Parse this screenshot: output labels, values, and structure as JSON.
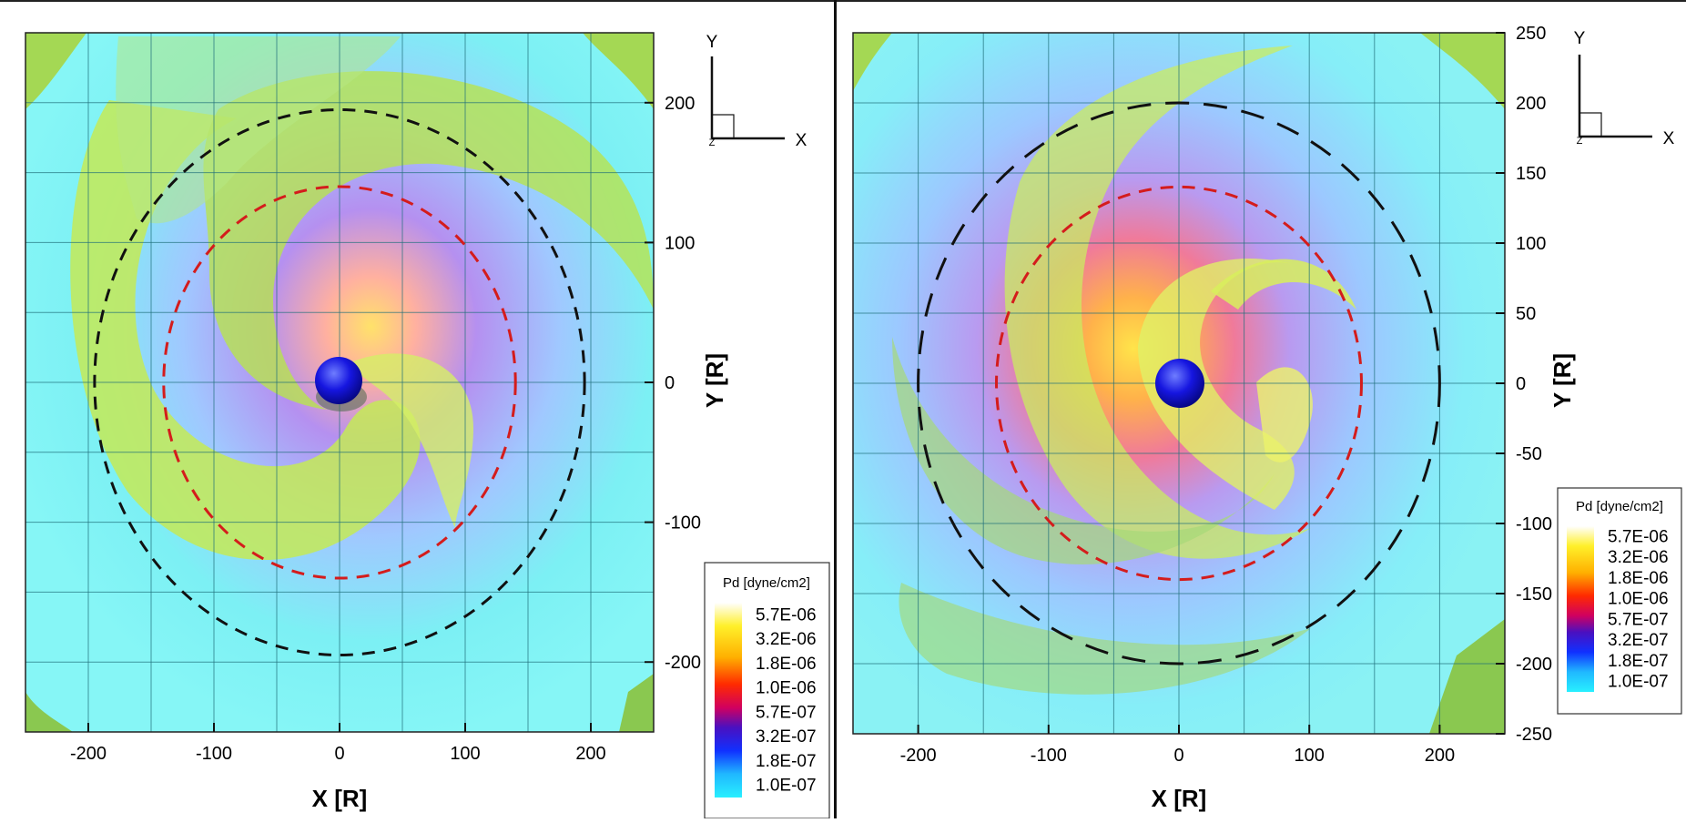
{
  "chart_data": [
    {
      "type": "heatmap",
      "xlabel": "X [R]",
      "ylabel": "Y [R]",
      "xlim": [
        -250,
        250
      ],
      "ylim": [
        -250,
        250
      ],
      "x_ticks": [
        -200,
        -100,
        0,
        100,
        200
      ],
      "y_ticks": [
        -200,
        -100,
        0,
        100,
        200
      ],
      "grid": true,
      "circles": [
        {
          "color": "#111111",
          "radius": 195
        },
        {
          "color": "#d41c1c",
          "radius": 140
        }
      ],
      "legend": {
        "title": "Pd [dyne/cm2]",
        "placement": "bottom-right",
        "labels": [
          "5.7E-06",
          "3.2E-06",
          "1.8E-06",
          "1.0E-06",
          "5.7E-07",
          "3.2E-07",
          "1.8E-07",
          "1.0E-07"
        ]
      },
      "axis_triad": {
        "x": "X",
        "y": "Y",
        "z": "Z"
      }
    },
    {
      "type": "heatmap",
      "xlabel": "X [R]",
      "ylabel": "Y [R]",
      "xlim": [
        -250,
        250
      ],
      "ylim": [
        -250,
        250
      ],
      "x_ticks": [
        -200,
        -100,
        0,
        100,
        200
      ],
      "y_ticks": [
        -250,
        -200,
        -150,
        -100,
        -50,
        0,
        50,
        100,
        150,
        200,
        250
      ],
      "grid": true,
      "circles": [
        {
          "color": "#111111",
          "radius": 200
        },
        {
          "color": "#d41c1c",
          "radius": 140
        }
      ],
      "legend": {
        "title": "Pd [dyne/cm2]",
        "placement": "right",
        "labels": [
          "5.7E-06",
          "3.2E-06",
          "1.8E-06",
          "1.0E-06",
          "5.7E-07",
          "3.2E-07",
          "1.8E-07",
          "1.0E-07"
        ]
      },
      "axis_triad": {
        "x": "X",
        "y": "Y",
        "z": "Z"
      }
    }
  ]
}
